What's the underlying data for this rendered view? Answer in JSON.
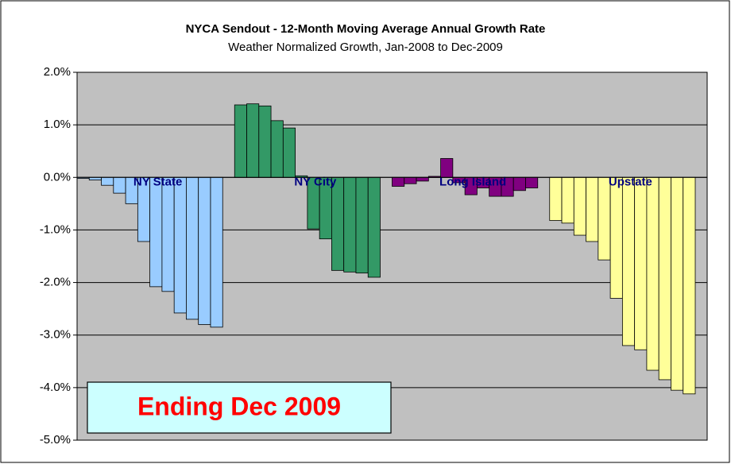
{
  "chart_data": {
    "type": "bar",
    "title": "NYCA Sendout - 12-Month Moving Average Annual Growth Rate",
    "subtitle": "Weather Normalized Growth, Jan-2008 to Dec-2009",
    "annotation": "Ending Dec 2009",
    "series": [
      {
        "name": "NY State",
        "color": "#99ccff",
        "values": [
          -0.02,
          -0.05,
          -0.15,
          -0.3,
          -0.5,
          -1.22,
          -2.08,
          -2.17,
          -2.58,
          -2.7,
          -2.8,
          -2.85
        ]
      },
      {
        "name": "NY City",
        "color": "#339966",
        "values": [
          1.38,
          1.4,
          1.36,
          1.08,
          0.94,
          0.03,
          -0.98,
          -1.17,
          -1.77,
          -1.8,
          -1.82,
          -1.9
        ]
      },
      {
        "name": "Long Island",
        "color": "#800080",
        "values": [
          -0.17,
          -0.12,
          -0.07,
          0.02,
          0.36,
          -0.1,
          -0.33,
          -0.2,
          -0.36,
          -0.36,
          -0.25,
          -0.2
        ]
      },
      {
        "name": "Upstate",
        "color": "#ffff99",
        "values": [
          -0.82,
          -0.87,
          -1.1,
          -1.22,
          -1.57,
          -2.3,
          -3.2,
          -3.28,
          -3.67,
          -3.85,
          -4.05,
          -4.12
        ]
      }
    ],
    "ylim": [
      -5,
      2
    ],
    "yticks": [
      {
        "value": -5,
        "label": "-5.0%"
      },
      {
        "value": -4,
        "label": "-4.0%"
      },
      {
        "value": -3,
        "label": "-3.0%"
      },
      {
        "value": -2,
        "label": "-2.0%"
      },
      {
        "value": -1,
        "label": "-1.0%"
      },
      {
        "value": 0,
        "label": "0.0%"
      },
      {
        "value": 1,
        "label": "1.0%"
      },
      {
        "value": 2,
        "label": "2.0%"
      }
    ],
    "grid": true
  }
}
